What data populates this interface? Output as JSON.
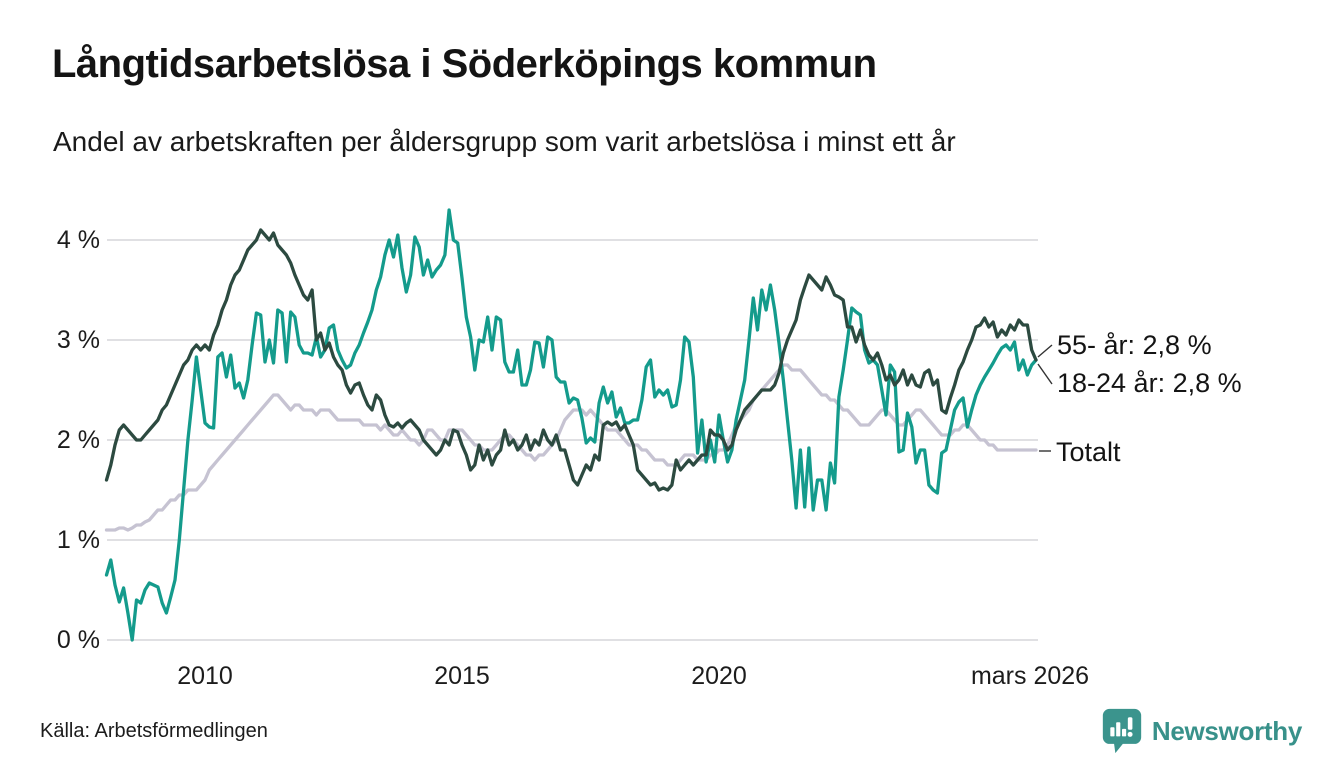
{
  "header": {
    "title": "Långtidsarbetslösa i Söderköpings kommun",
    "subtitle": "Andel av arbetskraften per åldersgrupp som varit arbetslösa i minst ett år"
  },
  "footer": {
    "source": "Källa: Arbetsförmedlingen",
    "brand": "Newsworthy"
  },
  "colors": {
    "series_55": "#2c4a40",
    "series_18_24": "#149b8c",
    "series_total": "#c6c3d2",
    "grid": "#e0e0e3",
    "text": "#1c1c1c",
    "brand_teal": "#38918a"
  },
  "chart_data": {
    "type": "line",
    "title": "Långtidsarbetslösa i Söderköpings kommun",
    "subtitle": "Andel av arbetskraften per åldersgrupp som varit arbetslösa i minst ett år",
    "unit": "% av arbetskraften",
    "x_start": {
      "year": 2008,
      "month": 2
    },
    "x_end": {
      "year": 2026,
      "month": 3
    },
    "x_frequency": "monthly",
    "x_tick_labels": [
      "2010",
      "2015",
      "2020",
      "mars 2026"
    ],
    "x_tick_positions": [
      2010.0,
      2015.0,
      2020.0,
      2026.17
    ],
    "y_tick_labels": [
      "0 %",
      "1 %",
      "2 %",
      "3 %",
      "4 %"
    ],
    "y_ticks": [
      0,
      1,
      2,
      3,
      4
    ],
    "ylim": [
      0,
      4.4
    ],
    "grid": "horizontal",
    "legend_position": "right-end-labels",
    "series": [
      {
        "name": "Totalt",
        "end_label": "Totalt",
        "last_value": 1.9,
        "color": "#c6c3d2",
        "values": [
          1.1,
          1.1,
          1.1,
          1.12,
          1.12,
          1.1,
          1.12,
          1.15,
          1.15,
          1.18,
          1.2,
          1.25,
          1.3,
          1.3,
          1.35,
          1.4,
          1.4,
          1.45,
          1.45,
          1.5,
          1.5,
          1.5,
          1.55,
          1.6,
          1.7,
          1.75,
          1.8,
          1.85,
          1.9,
          1.95,
          2.0,
          2.05,
          2.1,
          2.15,
          2.2,
          2.25,
          2.3,
          2.35,
          2.4,
          2.45,
          2.45,
          2.4,
          2.35,
          2.3,
          2.35,
          2.35,
          2.3,
          2.3,
          2.3,
          2.25,
          2.3,
          2.3,
          2.3,
          2.25,
          2.2,
          2.2,
          2.2,
          2.2,
          2.2,
          2.2,
          2.15,
          2.15,
          2.15,
          2.15,
          2.1,
          2.15,
          2.1,
          2.05,
          2.05,
          2.1,
          2.05,
          2.0,
          2.0,
          1.95,
          2.0,
          2.1,
          2.1,
          2.05,
          2.0,
          2.0,
          2.1,
          2.1,
          2.1,
          2.1,
          2.05,
          2.0,
          1.95,
          1.95,
          1.9,
          1.9,
          1.9,
          1.95,
          2.0,
          2.05,
          2.05,
          2.0,
          1.95,
          1.9,
          1.85,
          1.85,
          1.8,
          1.85,
          1.85,
          1.9,
          1.95,
          2.0,
          2.1,
          2.2,
          2.25,
          2.3,
          2.3,
          2.3,
          2.25,
          2.3,
          2.25,
          2.2,
          2.15,
          2.1,
          2.1,
          2.1,
          2.05,
          2.0,
          1.95,
          1.95,
          1.95,
          1.9,
          1.9,
          1.85,
          1.8,
          1.8,
          1.8,
          1.75,
          1.75,
          1.75,
          1.8,
          1.85,
          1.85,
          1.85,
          1.8,
          1.8,
          1.8,
          1.85,
          1.85,
          1.9,
          1.9,
          1.95,
          2.05,
          2.15,
          2.2,
          2.25,
          2.3,
          2.4,
          2.45,
          2.5,
          2.55,
          2.6,
          2.65,
          2.7,
          2.75,
          2.75,
          2.7,
          2.7,
          2.7,
          2.65,
          2.6,
          2.55,
          2.5,
          2.45,
          2.45,
          2.4,
          2.4,
          2.35,
          2.3,
          2.3,
          2.25,
          2.2,
          2.15,
          2.15,
          2.15,
          2.2,
          2.25,
          2.3,
          2.3,
          2.25,
          2.2,
          2.15,
          2.15,
          2.2,
          2.25,
          2.3,
          2.3,
          2.25,
          2.2,
          2.15,
          2.1,
          2.05,
          2.05,
          2.05,
          2.1,
          2.1,
          2.15,
          2.15,
          2.1,
          2.05,
          2.0,
          2.0,
          1.95,
          1.95,
          1.9,
          1.9,
          1.9,
          1.9,
          1.9,
          1.9,
          1.9,
          1.9,
          1.9,
          1.9
        ]
      },
      {
        "name": "18-24 år",
        "end_label": "18-24 år: 2,8 %",
        "last_value": 2.8,
        "color": "#149b8c",
        "values": [
          0.65,
          0.8,
          0.55,
          0.38,
          0.52,
          0.27,
          0.0,
          0.4,
          0.37,
          0.5,
          0.57,
          0.55,
          0.53,
          0.37,
          0.27,
          0.43,
          0.6,
          1.0,
          1.5,
          2.0,
          2.4,
          2.83,
          2.5,
          2.17,
          2.13,
          2.12,
          2.83,
          2.87,
          2.63,
          2.85,
          2.52,
          2.57,
          2.42,
          2.6,
          2.95,
          3.27,
          3.25,
          2.78,
          3.0,
          2.77,
          3.3,
          3.27,
          2.78,
          3.28,
          3.23,
          2.95,
          2.87,
          2.87,
          2.85,
          3.03,
          2.83,
          2.9,
          3.12,
          3.15,
          2.9,
          2.8,
          2.72,
          2.75,
          2.87,
          2.95,
          3.07,
          3.18,
          3.3,
          3.5,
          3.63,
          3.85,
          4.0,
          3.83,
          4.05,
          3.72,
          3.48,
          3.65,
          4.03,
          3.93,
          3.65,
          3.8,
          3.63,
          3.7,
          3.75,
          3.85,
          4.3,
          4.0,
          3.97,
          3.62,
          3.23,
          3.03,
          2.7,
          3.0,
          2.98,
          3.23,
          2.9,
          3.23,
          3.2,
          2.78,
          2.68,
          2.68,
          2.9,
          2.55,
          2.55,
          2.7,
          2.98,
          2.97,
          2.73,
          3.03,
          3.0,
          2.63,
          2.58,
          2.58,
          2.37,
          2.42,
          2.4,
          2.22,
          1.97,
          2.02,
          1.98,
          2.37,
          2.53,
          2.37,
          2.48,
          2.23,
          2.32,
          2.17,
          2.17,
          2.2,
          2.2,
          2.4,
          2.73,
          2.8,
          2.43,
          2.5,
          2.45,
          2.5,
          2.33,
          2.35,
          2.6,
          3.03,
          2.98,
          2.63,
          1.87,
          2.2,
          1.78,
          2.0,
          1.78,
          2.25,
          2.0,
          1.78,
          1.9,
          2.2,
          2.4,
          2.6,
          3.0,
          3.42,
          3.1,
          3.5,
          3.3,
          3.55,
          3.3,
          2.97,
          2.6,
          2.2,
          1.8,
          1.32,
          1.9,
          1.33,
          1.92,
          1.3,
          1.6,
          1.6,
          1.3,
          1.77,
          1.57,
          2.43,
          2.7,
          3.0,
          3.32,
          3.28,
          3.25,
          2.9,
          2.77,
          2.8,
          2.75,
          2.5,
          2.25,
          2.75,
          2.68,
          1.88,
          1.9,
          2.27,
          2.13,
          1.77,
          1.9,
          1.9,
          1.55,
          1.5,
          1.47,
          1.87,
          1.9,
          2.1,
          2.3,
          2.38,
          2.42,
          2.13,
          2.3,
          2.45,
          2.55,
          2.63,
          2.7,
          2.77,
          2.85,
          2.92,
          2.95,
          2.9,
          2.98,
          2.7,
          2.8,
          2.65,
          2.75,
          2.8
        ]
      },
      {
        "name": "55- år",
        "end_label": "55- år: 2,8 %",
        "last_value": 2.8,
        "color": "#2c4a40",
        "values": [
          1.6,
          1.75,
          1.95,
          2.1,
          2.15,
          2.1,
          2.05,
          2.0,
          2.0,
          2.05,
          2.1,
          2.15,
          2.2,
          2.3,
          2.35,
          2.45,
          2.55,
          2.65,
          2.75,
          2.8,
          2.9,
          2.95,
          2.9,
          2.95,
          2.9,
          3.05,
          3.15,
          3.3,
          3.4,
          3.55,
          3.65,
          3.7,
          3.8,
          3.9,
          3.95,
          4.0,
          4.1,
          4.05,
          4.0,
          4.07,
          3.95,
          3.9,
          3.85,
          3.77,
          3.65,
          3.55,
          3.45,
          3.4,
          3.5,
          3.0,
          3.07,
          2.9,
          2.97,
          2.83,
          2.75,
          2.7,
          2.55,
          2.47,
          2.55,
          2.57,
          2.45,
          2.35,
          2.3,
          2.45,
          2.4,
          2.25,
          2.15,
          2.13,
          2.17,
          2.12,
          2.17,
          2.2,
          2.15,
          2.1,
          2.0,
          1.95,
          1.9,
          1.85,
          1.9,
          2.0,
          1.95,
          2.1,
          2.08,
          1.95,
          1.85,
          1.7,
          1.75,
          1.95,
          1.8,
          1.9,
          1.75,
          1.85,
          1.9,
          2.1,
          1.95,
          2.0,
          1.9,
          1.95,
          2.05,
          1.9,
          2.0,
          1.95,
          2.1,
          2.0,
          1.95,
          2.05,
          1.9,
          1.9,
          1.75,
          1.6,
          1.55,
          1.65,
          1.75,
          1.7,
          1.85,
          1.8,
          2.15,
          2.18,
          2.15,
          2.18,
          2.1,
          2.15,
          2.05,
          1.95,
          1.7,
          1.65,
          1.6,
          1.55,
          1.57,
          1.5,
          1.52,
          1.5,
          1.55,
          1.8,
          1.7,
          1.75,
          1.8,
          1.75,
          1.8,
          1.85,
          1.85,
          2.1,
          2.05,
          2.05,
          2.0,
          1.9,
          1.95,
          2.1,
          2.2,
          2.3,
          2.35,
          2.4,
          2.45,
          2.5,
          2.5,
          2.5,
          2.55,
          2.67,
          2.87,
          3.0,
          3.1,
          3.2,
          3.4,
          3.53,
          3.65,
          3.6,
          3.55,
          3.5,
          3.63,
          3.55,
          3.45,
          3.43,
          3.4,
          3.13,
          3.13,
          2.98,
          3.1,
          2.95,
          2.85,
          2.8,
          2.87,
          2.75,
          2.6,
          2.65,
          2.55,
          2.6,
          2.7,
          2.55,
          2.65,
          2.55,
          2.53,
          2.67,
          2.7,
          2.55,
          2.6,
          2.3,
          2.27,
          2.42,
          2.55,
          2.7,
          2.78,
          2.9,
          3.0,
          3.13,
          3.15,
          3.22,
          3.13,
          3.18,
          3.03,
          3.1,
          3.05,
          3.15,
          3.1,
          3.2,
          3.15,
          3.15,
          2.9,
          2.8
        ]
      }
    ]
  }
}
